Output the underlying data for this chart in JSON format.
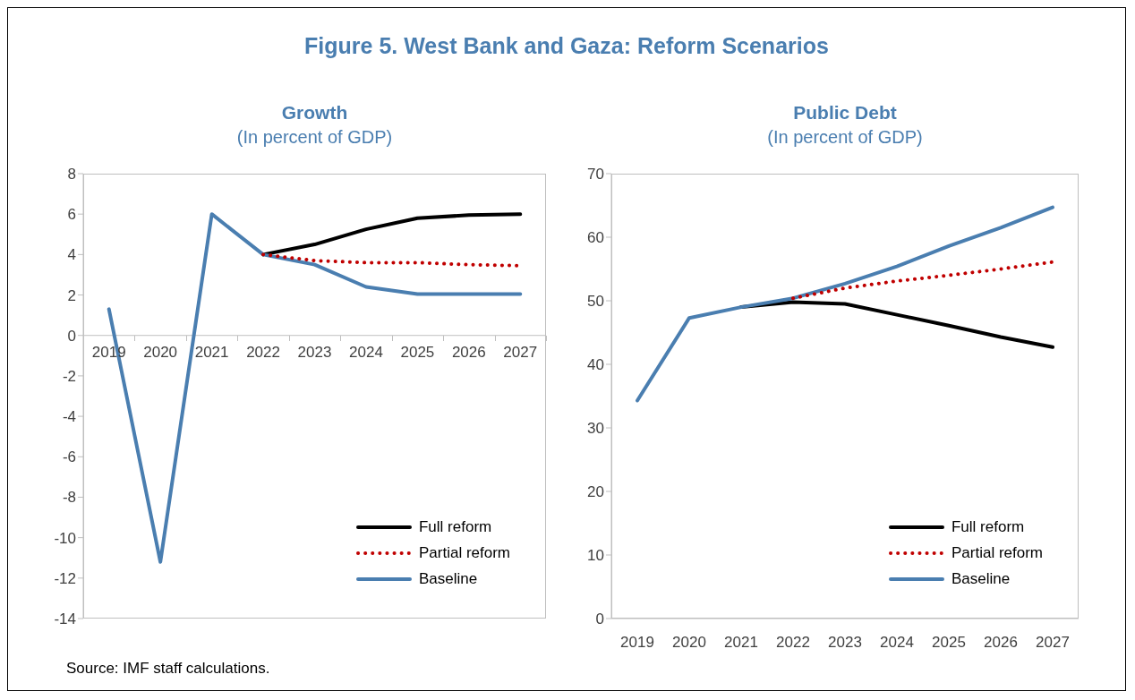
{
  "chart_data": [
    {
      "type": "line",
      "title": "Growth",
      "subtitle": "(In percent of GDP)",
      "annotations": [
        "Figure 5. West Bank and Gaza: Reform Scenarios"
      ],
      "categories": [
        "2019",
        "2020",
        "2021",
        "2022",
        "2023",
        "2024",
        "2025",
        "2026",
        "2027"
      ],
      "ylim": [
        -14,
        8
      ],
      "yticks": [
        -14,
        -12,
        -10,
        -8,
        -6,
        -4,
        -2,
        0,
        2,
        4,
        6,
        8
      ],
      "legend": "bottom right",
      "marker": "none",
      "series": [
        {
          "name": "Full reform",
          "color": "#000000",
          "line_style": "solid",
          "values": [
            null,
            null,
            null,
            4.0,
            4.5,
            5.25,
            5.8,
            5.95,
            6.0
          ]
        },
        {
          "name": "Partial reform",
          "color": "#c00000",
          "line_style": "dotted",
          "values": [
            null,
            null,
            null,
            4.0,
            3.7,
            3.6,
            3.6,
            3.5,
            3.45
          ]
        },
        {
          "name": "Baseline",
          "color": "#4a7eb0",
          "line_style": "solid",
          "values": [
            1.3,
            -11.2,
            6.0,
            4.0,
            3.5,
            2.4,
            2.05,
            2.05,
            2.05
          ]
        }
      ]
    },
    {
      "type": "line",
      "title": "Public Debt",
      "subtitle": "(In percent of GDP)",
      "annotations": [
        "Source: IMF staff calculations."
      ],
      "categories": [
        "2019",
        "2020",
        "2021",
        "2022",
        "2023",
        "2024",
        "2025",
        "2026",
        "2027"
      ],
      "ylim": [
        0,
        70
      ],
      "yticks": [
        0,
        10,
        20,
        30,
        40,
        50,
        60,
        70
      ],
      "legend": "bottom right",
      "marker": "none",
      "series": [
        {
          "name": "Full reform",
          "color": "#000000",
          "line_style": "solid",
          "values": [
            null,
            null,
            49.0,
            49.8,
            49.5,
            47.8,
            46.1,
            44.3,
            42.7
          ]
        },
        {
          "name": "Partial reform",
          "color": "#c00000",
          "line_style": "dotted",
          "values": [
            null,
            null,
            null,
            50.4,
            52.0,
            53.1,
            54.0,
            55.0,
            56.1
          ]
        },
        {
          "name": "Baseline",
          "color": "#4a7eb0",
          "line_style": "solid",
          "values": [
            34.3,
            47.3,
            49.0,
            50.4,
            52.7,
            55.4,
            58.6,
            61.5,
            64.7
          ]
        }
      ]
    }
  ]
}
